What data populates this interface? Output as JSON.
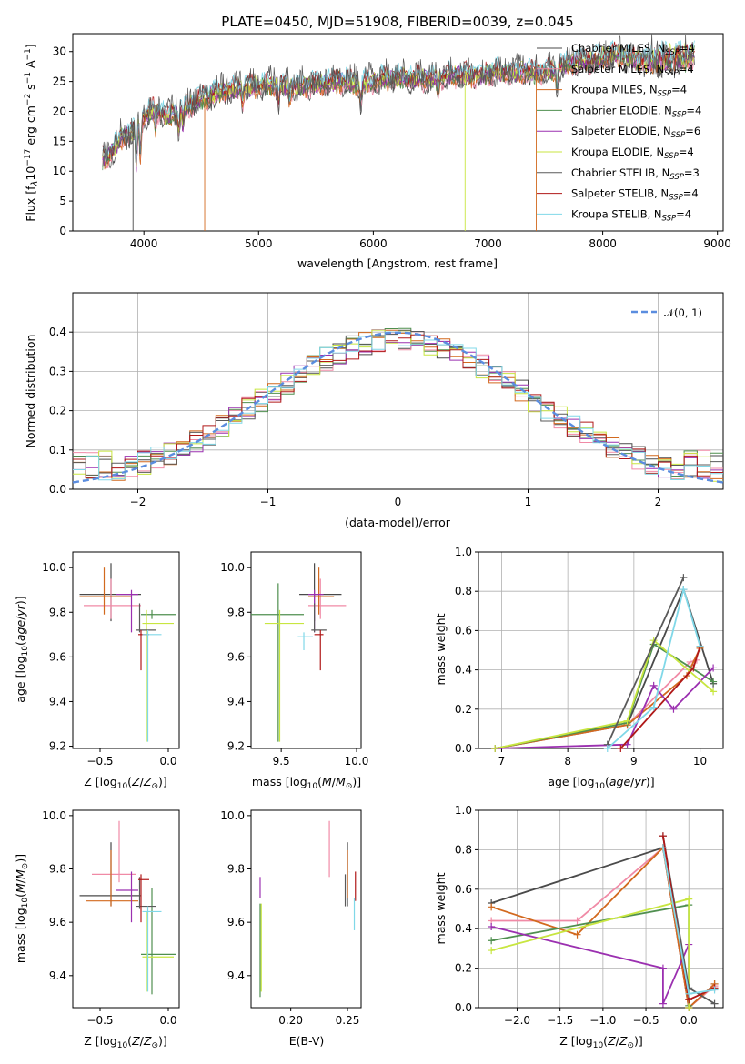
{
  "title": "PLATE=0450, MJD=51908, FIBERID=0039, z=0.045",
  "colors": {
    "series": [
      "#4a4a4a",
      "#f08aa6",
      "#d2691e",
      "#4f8f4f",
      "#9b30b0",
      "#c8e640",
      "#5a5a5a",
      "#b01818",
      "#80d8e8"
    ],
    "normal_curve": "#5b8ddf"
  },
  "chart_data": [
    {
      "id": "spectrum",
      "type": "line",
      "title": "PLATE=0450, MJD=51908, FIBERID=0039, z=0.045",
      "xlabel": "wavelength [Angstrom, rest frame]",
      "ylabel": "Flux [fλ10⁻¹⁷ erg cm⁻² s⁻¹ A⁻¹]",
      "xlim": [
        3380,
        9050
      ],
      "ylim": [
        0,
        33
      ],
      "xticks": [
        "4000",
        "5000",
        "6000",
        "7000",
        "8000",
        "9000"
      ],
      "yticks": [
        "0",
        "5",
        "10",
        "15",
        "20",
        "25",
        "30"
      ],
      "grid": false,
      "legend_position": "top-right",
      "series": [
        {
          "name": "Chabrier MILES, N_SSP=4"
        },
        {
          "name": "Salpeter MILES, N_SSP=4"
        },
        {
          "name": "Kroupa MILES, N_SSP=4"
        },
        {
          "name": "Chabrier ELODIE, N_SSP=4"
        },
        {
          "name": "Salpeter ELODIE, N_SSP=6"
        },
        {
          "name": "Kroupa ELODIE, N_SSP=4"
        },
        {
          "name": "Chabrier STELIB, N_SSP=3"
        },
        {
          "name": "Salpeter STELIB, N_SSP=4"
        },
        {
          "name": "Kroupa STELIB, N_SSP=4"
        }
      ],
      "continuum": {
        "x": [
          3640,
          3700,
          3800,
          3900,
          4000,
          4100,
          4200,
          4300,
          4400,
          4500,
          4700,
          4900,
          5100,
          5300,
          5500,
          5700,
          5900,
          6100,
          6300,
          6500,
          6700,
          6900,
          7100,
          7300,
          7500,
          7700,
          7900,
          8100,
          8300,
          8500,
          8700,
          8800
        ],
        "y": [
          12.0,
          12.5,
          15.5,
          16.5,
          19.0,
          20.5,
          19.0,
          20.0,
          21.0,
          22.0,
          23.5,
          24.0,
          24.5,
          24.0,
          24.5,
          25.0,
          24.5,
          25.5,
          25.5,
          25.5,
          26.0,
          26.0,
          26.5,
          26.5,
          26.5,
          28.0,
          28.5,
          29.5,
          28.5,
          28.5,
          29.0,
          29.5
        ]
      },
      "spikes": [
        {
          "x": 3905,
          "y": 0
        },
        {
          "x": 4530,
          "y": 0
        },
        {
          "x": 6800,
          "y": 0
        },
        {
          "x": 7420,
          "y": 0
        }
      ]
    },
    {
      "id": "residuals",
      "type": "line",
      "xlabel": "(data-model)/error",
      "ylabel": "Normed distribution",
      "xlim": [
        -2.5,
        2.5
      ],
      "ylim": [
        0,
        0.5
      ],
      "xticks": [
        "−2",
        "−1",
        "0",
        "1",
        "2"
      ],
      "yticks": [
        "0.0",
        "0.1",
        "0.2",
        "0.3",
        "0.4"
      ],
      "grid": true,
      "legend_position": "top-right",
      "legend": "𝒩(0, 1)",
      "normal_curve": {
        "mean": 0,
        "sigma": 1
      },
      "bin_edges_start": -2.5,
      "bin_width": 0.1
    },
    {
      "id": "age_vs_Z",
      "type": "scatter",
      "xlabel": "Z [log10(Z/Z⊙)]",
      "ylabel": "age  [log10(age/yr)]",
      "xlim": [
        -0.7,
        0.08
      ],
      "ylim": [
        9.19,
        10.07
      ],
      "xticks": [
        "−0.5",
        "0.0"
      ],
      "yticks": [
        "9.2",
        "9.4",
        "9.6",
        "9.8",
        "10.0"
      ],
      "grid": false,
      "points": [
        {
          "series": "Chabrier MILES",
          "x": -0.42,
          "y": 9.88,
          "xerr": [
            0.23,
            0.22
          ],
          "yerr": [
            0.12,
            0.14
          ]
        },
        {
          "series": "Salpeter MILES",
          "x": -0.42,
          "y": 9.83,
          "xerr": [
            0.2,
            0.22
          ],
          "yerr": [
            0.06,
            0.12
          ]
        },
        {
          "series": "Kroupa MILES",
          "x": -0.47,
          "y": 9.87,
          "xerr": [
            0.18,
            0.2
          ],
          "yerr": [
            0.08,
            0.13
          ]
        },
        {
          "series": "Chabrier ELODIE",
          "x": -0.12,
          "y": 9.79,
          "xerr": [
            0.08,
            0.18
          ],
          "yerr": [
            0.02,
            0.02
          ]
        },
        {
          "series": "Salpeter ELODIE",
          "x": -0.27,
          "y": 9.88,
          "xerr": [
            0.11,
            0.05
          ],
          "yerr": [
            0.17,
            0.02
          ]
        },
        {
          "series": "Kroupa ELODIE",
          "x": -0.16,
          "y": 9.75,
          "xerr": [
            0.03,
            0.2
          ],
          "yerr": [
            0.53,
            0.06
          ]
        },
        {
          "series": "Chabrier STELIB",
          "x": -0.21,
          "y": 9.72,
          "xerr": [
            0.03,
            0.12
          ],
          "yerr": [
            0.01,
            0.12
          ]
        },
        {
          "series": "Salpeter STELIB",
          "x": -0.2,
          "y": 9.7,
          "xerr": [
            0.02,
            0.06
          ],
          "yerr": [
            0.16,
            0.02
          ]
        },
        {
          "series": "Kroupa STELIB",
          "x": -0.15,
          "y": 9.7,
          "xerr": [
            0.04,
            0.1
          ],
          "yerr": [
            0.48,
            0.02
          ]
        }
      ]
    },
    {
      "id": "age_vs_mass",
      "type": "scatter",
      "xlabel": "mass [log10(M/M⊙)]",
      "ylabel": "",
      "xlim": [
        9.3,
        10.03
      ],
      "ylim": [
        9.19,
        10.07
      ],
      "xticks": [
        "9.5",
        "10.0"
      ],
      "yticks": [
        "9.2",
        "9.4",
        "9.6",
        "9.8",
        "10.0"
      ],
      "grid": false,
      "points": [
        {
          "series": "Chabrier MILES",
          "x": 9.72,
          "y": 9.88,
          "xerr": [
            0.1,
            0.18
          ],
          "yerr": [
            0.12,
            0.14
          ]
        },
        {
          "series": "Salpeter MILES",
          "x": 9.76,
          "y": 9.83,
          "xerr": [
            0.08,
            0.17
          ],
          "yerr": [
            0.06,
            0.12
          ]
        },
        {
          "series": "Kroupa MILES",
          "x": 9.75,
          "y": 9.87,
          "xerr": [
            0.07,
            0.1
          ],
          "yerr": [
            0.08,
            0.13
          ]
        },
        {
          "series": "Chabrier ELODIE",
          "x": 9.48,
          "y": 9.79,
          "xerr": [
            0.18,
            0.17
          ],
          "yerr": [
            0.57,
            0.14
          ]
        },
        {
          "series": "Salpeter ELODIE",
          "x": 9.72,
          "y": 9.88,
          "xerr": [
            0.04,
            0.06
          ],
          "yerr": [
            0.17,
            0.02
          ]
        },
        {
          "series": "Kroupa ELODIE",
          "x": 9.49,
          "y": 9.75,
          "xerr": [
            0.1,
            0.16
          ],
          "yerr": [
            0.53,
            0.06
          ]
        },
        {
          "series": "Chabrier STELIB",
          "x": 9.72,
          "y": 9.72,
          "xerr": [
            0.02,
            0.08
          ],
          "yerr": [
            0.01,
            0.12
          ]
        },
        {
          "series": "Salpeter STELIB",
          "x": 9.76,
          "y": 9.7,
          "xerr": [
            0.04,
            0.02
          ],
          "yerr": [
            0.16,
            0.02
          ]
        },
        {
          "series": "Kroupa STELIB",
          "x": 9.65,
          "y": 9.69,
          "xerr": [
            0.04,
            0.06
          ],
          "yerr": [
            0.06,
            0.02
          ]
        }
      ]
    },
    {
      "id": "mass_weight_vs_age",
      "type": "line",
      "xlabel": "age  [log10(age/yr)]",
      "ylabel": "mass weight",
      "xlim": [
        6.65,
        10.35
      ],
      "ylim": [
        0,
        1.0
      ],
      "xticks": [
        "7",
        "8",
        "9",
        "10"
      ],
      "yticks": [
        "0.0",
        "0.2",
        "0.4",
        "0.6",
        "0.8",
        "1.0"
      ],
      "grid": true,
      "series": [
        {
          "x": [
            6.9,
            8.9,
            9.75,
            10.2
          ],
          "y": [
            0.0,
            0.12,
            0.81,
            0.33
          ]
        },
        {
          "x": [
            6.9,
            8.9,
            9.85,
            9.95
          ],
          "y": [
            0.0,
            0.12,
            0.44,
            0.45
          ]
        },
        {
          "x": [
            6.9,
            8.9,
            9.8,
            10.0
          ],
          "y": [
            0.0,
            0.12,
            0.37,
            0.51
          ]
        },
        {
          "x": [
            6.9,
            8.9,
            9.3,
            10.2
          ],
          "y": [
            0.0,
            0.13,
            0.53,
            0.34
          ]
        },
        {
          "x": [
            6.9,
            8.9,
            9.3,
            9.6,
            10.2
          ],
          "y": [
            0.0,
            0.02,
            0.32,
            0.2,
            0.41
          ]
        },
        {
          "x": [
            6.9,
            8.9,
            9.3,
            10.2
          ],
          "y": [
            0.0,
            0.14,
            0.55,
            0.29
          ]
        },
        {
          "x": [
            8.6,
            9.75
          ],
          "y": [
            0.02,
            0.87
          ]
        },
        {
          "x": [
            8.8,
            9.9,
            10.0
          ],
          "y": [
            0.0,
            0.41,
            0.52
          ]
        },
        {
          "x": [
            8.6,
            9.3,
            9.75,
            10.0
          ],
          "y": [
            0.0,
            0.21,
            0.81,
            0.52
          ]
        }
      ]
    },
    {
      "id": "mass_vs_Z",
      "type": "scatter",
      "xlabel": "Z [log10(Z/Z⊙)]",
      "ylabel": "mass [log10(M/M⊙)]",
      "xlim": [
        -0.7,
        0.08
      ],
      "ylim": [
        9.28,
        10.02
      ],
      "xticks": [
        "−0.5",
        "0.0"
      ],
      "yticks": [
        "9.4",
        "9.6",
        "9.8",
        "10.0"
      ],
      "grid": false,
      "points": [
        {
          "series": "Chabrier MILES",
          "x": -0.42,
          "y": 9.7,
          "xerr": [
            0.23,
            0.22
          ],
          "yerr": [
            0.04,
            0.2
          ]
        },
        {
          "series": "Salpeter MILES",
          "x": -0.36,
          "y": 9.78,
          "xerr": [
            0.2,
            0.12
          ],
          "yerr": [
            0.03,
            0.2
          ]
        },
        {
          "series": "Kroupa MILES",
          "x": -0.42,
          "y": 9.68,
          "xerr": [
            0.18,
            0.2
          ],
          "yerr": [
            0.02,
            0.19
          ]
        },
        {
          "series": "Chabrier ELODIE",
          "x": -0.12,
          "y": 9.48,
          "xerr": [
            0.08,
            0.18
          ],
          "yerr": [
            0.15,
            0.25
          ]
        },
        {
          "series": "Salpeter ELODIE",
          "x": -0.27,
          "y": 9.72,
          "xerr": [
            0.11,
            0.05
          ],
          "yerr": [
            0.12,
            0.07
          ]
        },
        {
          "series": "Kroupa ELODIE",
          "x": -0.16,
          "y": 9.47,
          "xerr": [
            0.03,
            0.2
          ],
          "yerr": [
            0.13,
            0.17
          ]
        },
        {
          "series": "Chabrier STELIB",
          "x": -0.21,
          "y": 9.66,
          "xerr": [
            0.03,
            0.12
          ],
          "yerr": [
            0.01,
            0.11
          ]
        },
        {
          "series": "Salpeter STELIB",
          "x": -0.2,
          "y": 9.76,
          "xerr": [
            0.02,
            0.06
          ],
          "yerr": [
            0.16,
            0.02
          ]
        },
        {
          "series": "Kroupa STELIB",
          "x": -0.15,
          "y": 9.64,
          "xerr": [
            0.04,
            0.1
          ],
          "yerr": [
            0.3,
            0.02
          ]
        }
      ]
    },
    {
      "id": "mass_vs_ebv",
      "type": "scatter",
      "xlabel": "E(B-V)",
      "ylabel": "",
      "xlim": [
        0.165,
        0.262
      ],
      "ylim": [
        9.28,
        10.02
      ],
      "xticks": [
        "0.20",
        "0.25"
      ],
      "yticks": [
        "9.4",
        "9.6",
        "9.8",
        "10.0"
      ],
      "grid": false,
      "points": [
        {
          "series": "Chabrier MILES",
          "x": 0.25,
          "y": 9.7,
          "yerr": [
            0.04,
            0.2
          ]
        },
        {
          "series": "Salpeter MILES",
          "x": 0.234,
          "y": 9.78,
          "yerr": [
            0.01,
            0.2
          ]
        },
        {
          "series": "Kroupa MILES",
          "x": 0.25,
          "y": 9.72,
          "yerr": [
            0.03,
            0.15
          ]
        },
        {
          "series": "Chabrier ELODIE",
          "x": 0.173,
          "y": 9.47,
          "yerr": [
            0.15,
            0.2
          ]
        },
        {
          "series": "Salpeter ELODIE",
          "x": 0.173,
          "y": 9.72,
          "yerr": [
            0.03,
            0.05
          ]
        },
        {
          "series": "Kroupa ELODIE",
          "x": 0.174,
          "y": 9.47,
          "yerr": [
            0.13,
            0.2
          ]
        },
        {
          "series": "Chabrier STELIB",
          "x": 0.248,
          "y": 9.72,
          "yerr": [
            0.06,
            0.06
          ]
        },
        {
          "series": "Salpeter STELIB",
          "x": 0.257,
          "y": 9.72,
          "yerr": [
            0.04,
            0.07
          ]
        },
        {
          "series": "Kroupa STELIB",
          "x": 0.256,
          "y": 9.62,
          "yerr": [
            0.05,
            0.07
          ]
        }
      ]
    },
    {
      "id": "mass_weight_vs_Z",
      "type": "line",
      "xlabel": "Z [log10(Z/Z⊙)]",
      "ylabel": "mass weight",
      "xlim": [
        -2.45,
        0.4
      ],
      "ylim": [
        0,
        1.0
      ],
      "xticks": [
        "−2.0",
        "−1.5",
        "−1.0",
        "−0.5",
        "0.0"
      ],
      "yticks": [
        "0.0",
        "0.2",
        "0.4",
        "0.6",
        "0.8",
        "1.0"
      ],
      "grid": true,
      "series": [
        {
          "x": [
            -2.3,
            -0.3,
            0.0,
            0.3
          ],
          "y": [
            0.53,
            0.81,
            0.0,
            0.12
          ]
        },
        {
          "x": [
            -2.3,
            -1.3,
            -0.3,
            0.0,
            0.3
          ],
          "y": [
            0.44,
            0.44,
            0.81,
            0.0,
            0.11
          ]
        },
        {
          "x": [
            -2.3,
            -1.3,
            -0.3,
            0.0,
            0.3
          ],
          "y": [
            0.51,
            0.37,
            0.81,
            0.0,
            0.12
          ]
        },
        {
          "x": [
            -2.3,
            0.0,
            0.0
          ],
          "y": [
            0.34,
            0.52,
            0.01
          ]
        },
        {
          "x": [
            -2.3,
            -0.3,
            -0.3,
            0.0,
            0.0
          ],
          "y": [
            0.41,
            0.2,
            0.02,
            0.32,
            0.0
          ]
        },
        {
          "x": [
            -2.3,
            0.0,
            0.0
          ],
          "y": [
            0.29,
            0.55,
            0.0
          ]
        },
        {
          "x": [
            -0.3,
            0.0,
            0.3
          ],
          "y": [
            0.87,
            0.1,
            0.02
          ]
        },
        {
          "x": [
            -0.3,
            0.0,
            0.3
          ],
          "y": [
            0.87,
            0.04,
            0.1
          ]
        },
        {
          "x": [
            -0.3,
            0.0,
            0.3
          ],
          "y": [
            0.81,
            0.07,
            0.09
          ]
        }
      ]
    }
  ]
}
